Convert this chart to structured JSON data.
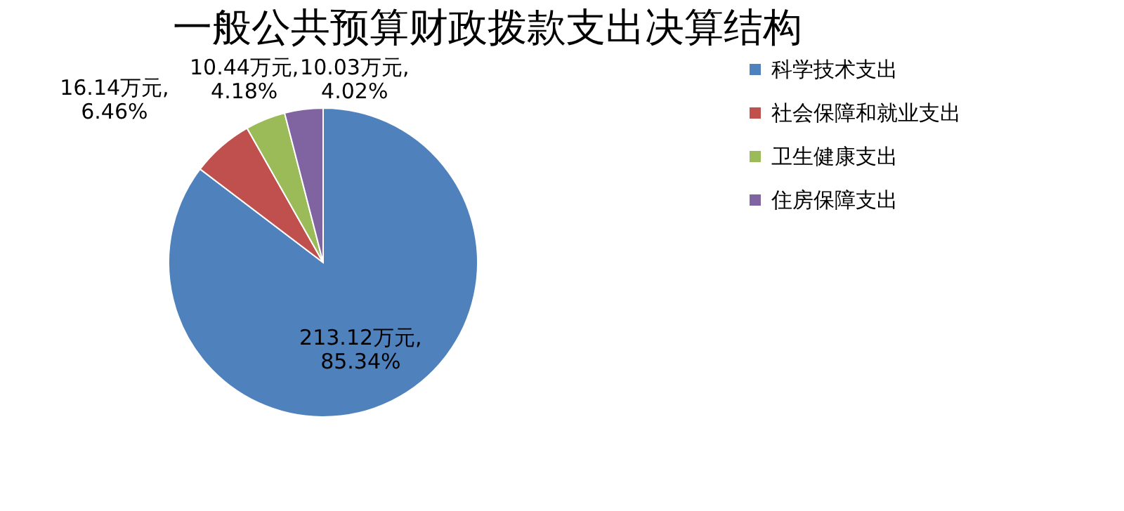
{
  "chart_data": {
    "type": "pie",
    "title": "一般公共预算财政拨款支出决算结构",
    "categories": [
      "科学技术支出",
      "社会保障和就业支出",
      "卫生健康支出",
      "住房保障支出"
    ],
    "values": [
      213.12,
      16.14,
      10.44,
      10.03
    ],
    "colors": [
      "#4f81bd",
      "#c0504d",
      "#9bbb59",
      "#8064a2"
    ],
    "value_labels": [
      "213.12万元,\n85.34%",
      "16.14万元,\n6.46%",
      "10.44万元,\n4.18%",
      "10.03万元,\n4.02%"
    ],
    "legend": "right"
  }
}
